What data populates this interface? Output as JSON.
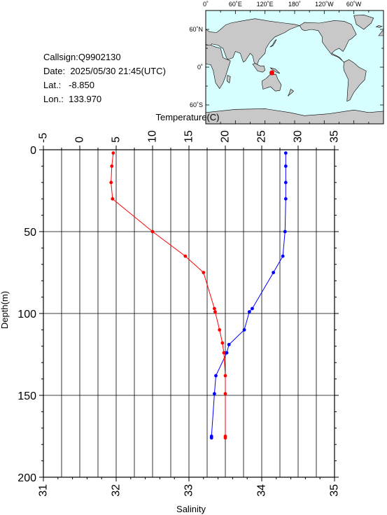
{
  "station": {
    "callsign_label": "Callsign:",
    "callsign": "Q9902130",
    "date_label": "Date:",
    "date": "2025/05/30 21:45(UTC)",
    "lat_label": "Lat.:",
    "lat": "-8.850",
    "lon_label": "Lon.:",
    "lon": "133.970"
  },
  "map": {
    "top_labels": [
      "0˚",
      "60˚E",
      "120˚E",
      "180˚",
      "120˚W",
      "60˚W"
    ],
    "lat_labels": [
      "60˚N",
      "0˚",
      "60˚S"
    ],
    "ocean_color": "#d7ffff",
    "land_color": "#c8c8c8",
    "marker_color": "#ff0000",
    "marker_lon": 133.97,
    "marker_lat": -8.85
  },
  "chart_data": {
    "type": "line",
    "ylabel": "Depth(m)",
    "xlabel_top": "Temperature(C)",
    "xlabel_bottom": "Salinity",
    "ylim": [
      0,
      200
    ],
    "y_reversed": true,
    "yticks": [
      "0",
      "50",
      "100",
      "150",
      "200"
    ],
    "temp_lim": [
      -5,
      35
    ],
    "temp_ticks": [
      "-5",
      "0",
      "5",
      "10",
      "15",
      "20",
      "25",
      "30",
      "35"
    ],
    "sal_lim": [
      31,
      35
    ],
    "sal_ticks": [
      "31",
      "32",
      "33",
      "34",
      "35"
    ],
    "grid": true,
    "series": [
      {
        "axis": "temperature",
        "color": "#0000ff",
        "points": [
          [
            28.3,
            2
          ],
          [
            28.3,
            10
          ],
          [
            28.3,
            20
          ],
          [
            28.3,
            30
          ],
          [
            28.2,
            50
          ],
          [
            27.9,
            65
          ],
          [
            26.6,
            75
          ],
          [
            23.7,
            97
          ],
          [
            23.3,
            99
          ],
          [
            22.6,
            110
          ],
          [
            20.5,
            119
          ],
          [
            20.2,
            124
          ],
          [
            18.7,
            138
          ],
          [
            18.5,
            149
          ],
          [
            18.1,
            175
          ],
          [
            18.1,
            176
          ]
        ]
      },
      {
        "axis": "salinity",
        "color": "#ff0000",
        "points": [
          [
            31.96,
            2
          ],
          [
            31.94,
            10
          ],
          [
            31.93,
            20
          ],
          [
            31.95,
            30
          ],
          [
            32.5,
            50
          ],
          [
            32.95,
            65
          ],
          [
            33.2,
            75
          ],
          [
            33.35,
            97
          ],
          [
            33.36,
            99
          ],
          [
            33.42,
            110
          ],
          [
            33.46,
            118
          ],
          [
            33.48,
            124
          ],
          [
            33.5,
            138
          ],
          [
            33.5,
            149
          ],
          [
            33.5,
            175
          ],
          [
            33.5,
            176
          ]
        ]
      }
    ]
  }
}
